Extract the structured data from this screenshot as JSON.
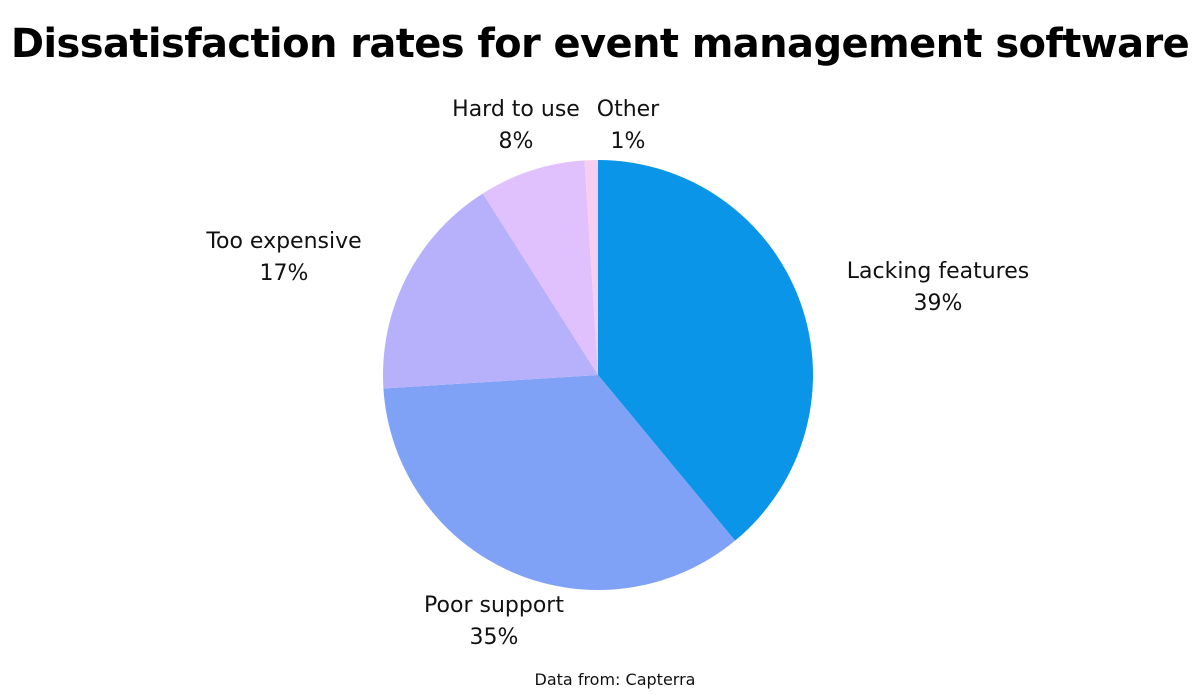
{
  "chart_data": {
    "type": "pie",
    "title": "Dissatisfaction rates for event management software",
    "source": "Data from: Capterra",
    "slices": [
      {
        "label": "Lacking features",
        "value": 39,
        "value_label": "39%",
        "color": "#0b95e8"
      },
      {
        "label": "Poor support",
        "value": 35,
        "value_label": "35%",
        "color": "#7fa2f6"
      },
      {
        "label": "Too expensive",
        "value": 17,
        "value_label": "17%",
        "color": "#b7b1fb"
      },
      {
        "label": "Hard to use",
        "value": 8,
        "value_label": "8%",
        "color": "#e0c1fd"
      },
      {
        "label": "Other",
        "value": 1,
        "value_label": "1%",
        "color": "#f6cff0"
      }
    ]
  }
}
